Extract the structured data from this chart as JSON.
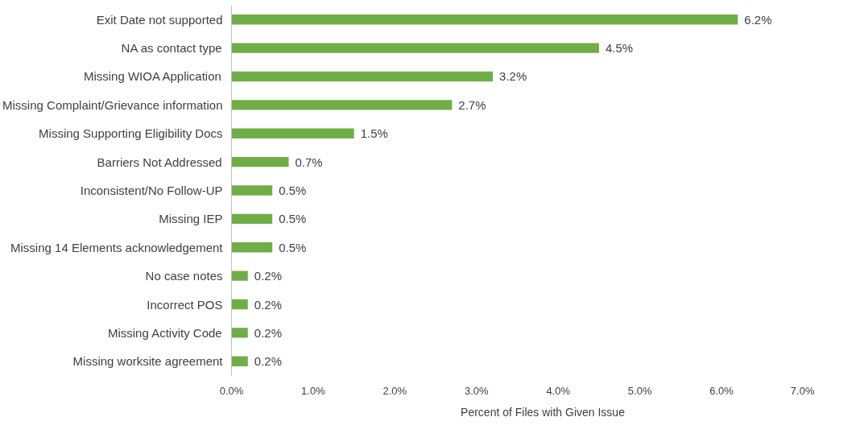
{
  "chart_data": {
    "type": "bar",
    "orientation": "horizontal",
    "categories": [
      "Exit Date not supported",
      "NA as contact type",
      "Missing WIOA Application",
      "Missing Complaint/Grievance information",
      "Missing Supporting Eligibility Docs",
      "Barriers Not Addressed",
      "Inconsistent/No Follow-UP",
      "Missing IEP",
      "Missing 14 Elements acknowledgement",
      "No case notes",
      "Incorrect POS",
      "Missing Activity Code",
      "Missing worksite agreement"
    ],
    "series": [
      {
        "name": "Percent of Files with Given Issue",
        "color": "#70ad47",
        "values": [
          6.2,
          4.5,
          3.2,
          2.7,
          1.5,
          0.7,
          0.5,
          0.5,
          0.5,
          0.2,
          0.2,
          0.2,
          0.2
        ],
        "value_labels": [
          "6.2%",
          "4.5%",
          "3.2%",
          "2.7%",
          "1.5%",
          "0.7%",
          "0.5%",
          "0.5%",
          "0.5%",
          "0.2%",
          "0.2%",
          "0.2%",
          "0.2%"
        ]
      }
    ],
    "xlim": [
      0,
      7
    ],
    "xticks": [
      {
        "value": 0,
        "label": "0.0%"
      },
      {
        "value": 1,
        "label": "1.0%"
      },
      {
        "value": 2,
        "label": "2.0%"
      },
      {
        "value": 3,
        "label": "3.0%"
      },
      {
        "value": 4,
        "label": "4.0%"
      },
      {
        "value": 5,
        "label": "5.0%"
      },
      {
        "value": 6,
        "label": "6.0%"
      },
      {
        "value": 7,
        "label": "7.0%"
      }
    ],
    "grid": false,
    "legend": "bottom"
  }
}
